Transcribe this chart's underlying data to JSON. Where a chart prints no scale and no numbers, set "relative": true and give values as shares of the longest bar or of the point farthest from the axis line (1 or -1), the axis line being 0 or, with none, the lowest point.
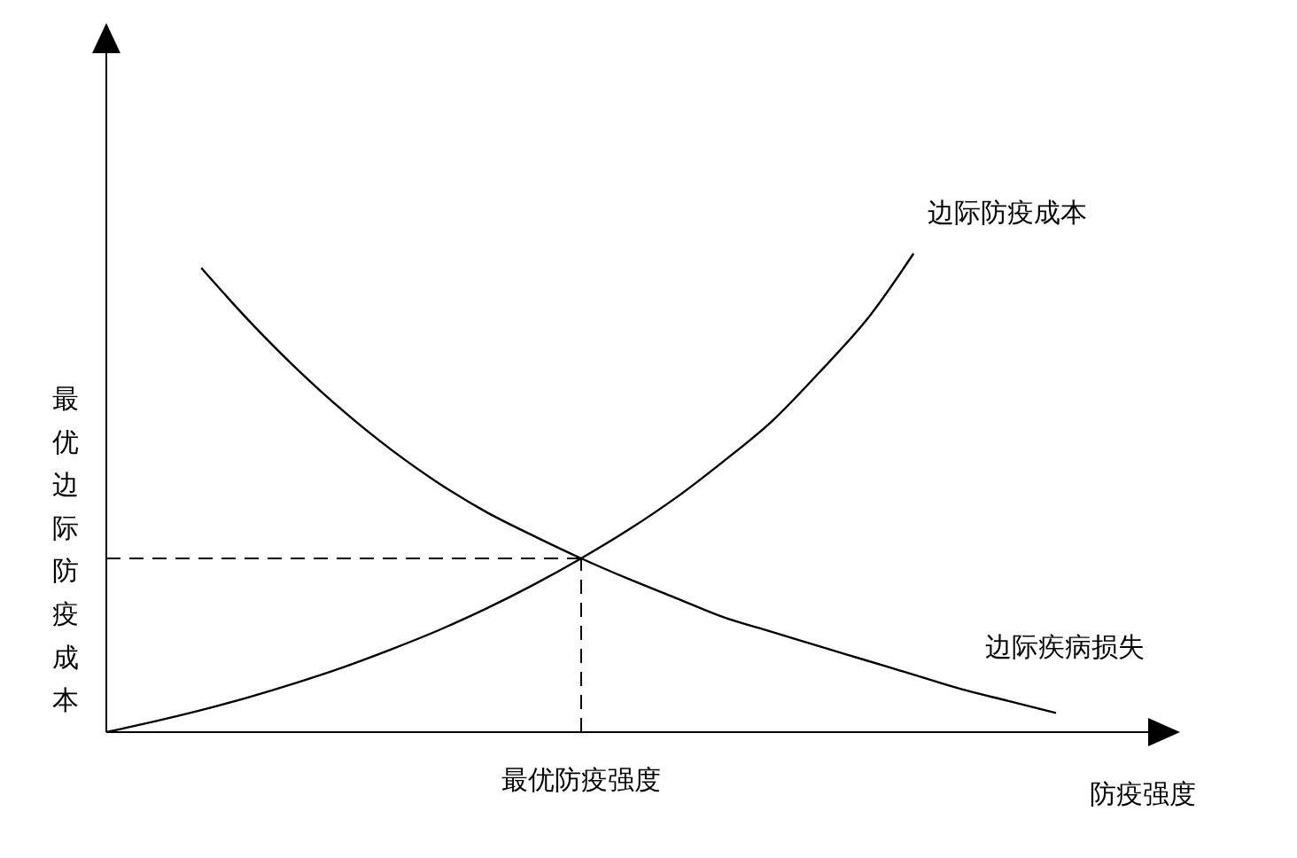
{
  "chart_data": {
    "type": "line",
    "relative": true,
    "xlabel": "防疫强度",
    "categories": [
      null,
      null,
      null,
      null,
      null,
      null,
      null,
      null,
      null,
      null,
      null,
      null,
      null,
      null,
      null,
      null,
      null,
      null,
      null,
      null,
      null
    ],
    "series": [
      {
        "name": "边际防疫成本",
        "color": "#000000",
        "values": [
          0,
          0.022,
          0.046,
          0.073,
          0.103,
          0.136,
          0.173,
          0.213,
          0.258,
          0.308,
          0.363,
          0.423,
          0.49,
          0.566,
          0.648,
          0.75,
          0.86,
          1.0,
          null,
          null,
          null
        ]
      },
      {
        "name": "边际疾病损失",
        "color": "#000000",
        "values": [
          null,
          null,
          0.97,
          0.86,
          0.76,
          0.67,
          0.59,
          0.52,
          0.46,
          0.41,
          0.363,
          0.32,
          0.28,
          0.24,
          0.21,
          0.18,
          0.15,
          0.12,
          0.09,
          0.065,
          0.04
        ]
      }
    ],
    "ref_lines": [
      {
        "axis": "y",
        "value": 0.363,
        "label": "最优边际防疫成本",
        "line_style": "dashed",
        "color": "#000000"
      }
    ],
    "annotations": [
      "最优防疫强度"
    ]
  }
}
